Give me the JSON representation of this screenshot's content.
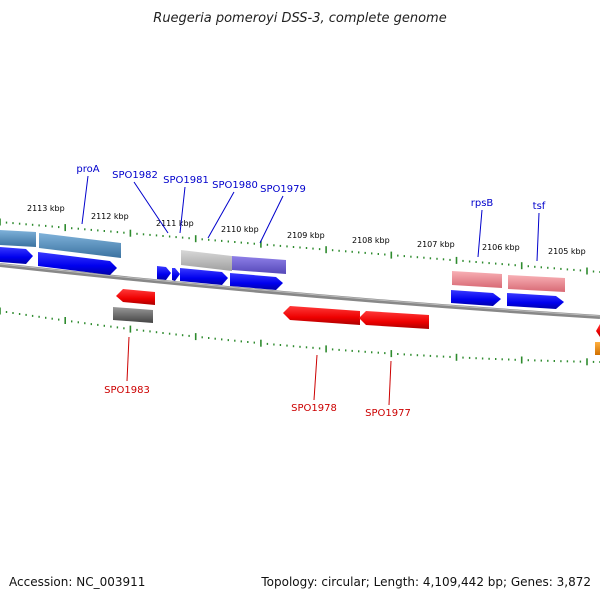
{
  "title": "Ruegeria pomeroyi DSS-3, complete genome",
  "footer": {
    "accession": "Accession: NC_003911",
    "topology": "Topology: circular; Length: 4,109,442 bp; Genes: 3,872"
  },
  "ruler_ticks": [
    "2113 kbp",
    "2112 kbp",
    "2111 kbp",
    "2110 kbp",
    "2109 kbp",
    "2108 kbp",
    "2107 kbp",
    "2106 kbp",
    "2105 kbp"
  ],
  "gene_labels_forward": [
    "proA",
    "SPO1982",
    "SPO1981",
    "SPO1980",
    "SPO1979",
    "rpsB",
    "tsf"
  ],
  "gene_labels_reverse": [
    "SPO1983",
    "SPO1978",
    "SPO1977"
  ],
  "colors": {
    "forward_strand": "#0000ee",
    "reverse_strand": "#ee0000",
    "forward_label": "#0000cc",
    "reverse_label": "#cc0000",
    "backbone": "#888888",
    "tick": "#2e8b2e",
    "feature_steelblue": "#4a86b8",
    "feature_gray": "#b8b8b8",
    "feature_slateblue": "#6a5acd",
    "feature_pink": "#e8838c",
    "feature_darkgray": "#666666",
    "feature_orange": "#f08c00"
  }
}
